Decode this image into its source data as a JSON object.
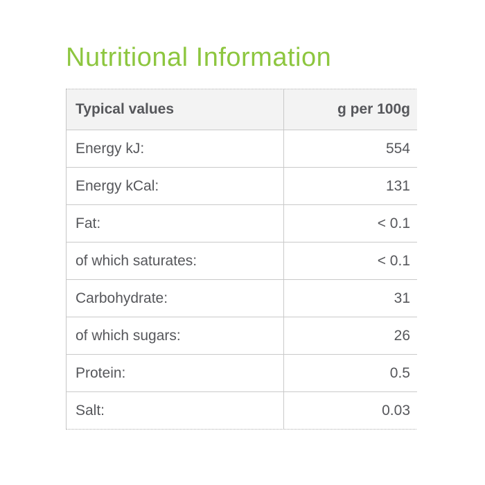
{
  "page": {
    "title": "Nutritional Information"
  },
  "table": {
    "columns": [
      "Typical values",
      "g per 100g"
    ],
    "rows": [
      {
        "label": "Energy kJ:",
        "value": "554"
      },
      {
        "label": "Energy kCal:",
        "value": "131"
      },
      {
        "label": "Fat:",
        "value": "< 0.1"
      },
      {
        "label": "of which saturates:",
        "value": "< 0.1"
      },
      {
        "label": "Carbohydrate:",
        "value": "31"
      },
      {
        "label": "of which sugars:",
        "value": "26"
      },
      {
        "label": "Protein:",
        "value": "0.5"
      },
      {
        "label": "Salt:",
        "value": "0.03"
      }
    ]
  },
  "colors": {
    "heading_green": "#8dc63f",
    "text_gray": "#56575b",
    "header_bg": "#f3f3f3",
    "border_gray": "#c9c9c9"
  }
}
